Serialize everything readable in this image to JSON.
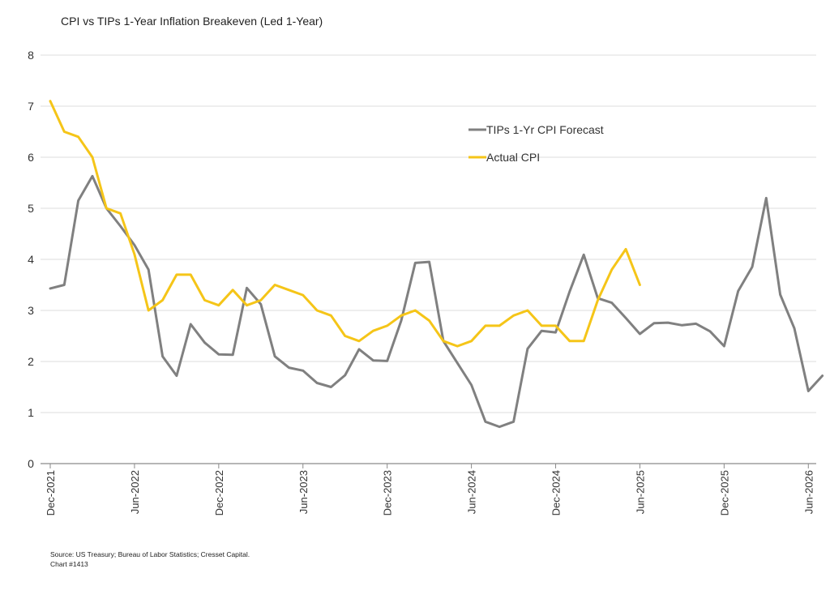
{
  "chart_data": {
    "type": "line",
    "title": "CPI vs TIPs 1-Year Inflation Breakeven (Led 1-Year)",
    "xlabel": "",
    "ylabel": "",
    "ylim": [
      0,
      8
    ],
    "yticks": [
      "0",
      "1",
      "2",
      "3",
      "4",
      "5",
      "6",
      "7",
      "8"
    ],
    "xticks": [
      "Dec-2021",
      "Jun-2022",
      "Dec-2022",
      "Jun-2023",
      "Dec-2023",
      "Jun-2024",
      "Dec-2024",
      "Jun-2025",
      "Dec-2025",
      "Jun-2026"
    ],
    "grid": true,
    "legend_position": "top-right",
    "series": [
      {
        "name": "TIPs 1-Yr CPI Forecast",
        "color": "#808080",
        "x": [
          "Dec-2021",
          "Jan-2022",
          "Feb-2022",
          "Mar-2022",
          "Apr-2022",
          "May-2022",
          "Jun-2022",
          "Jul-2022",
          "Aug-2022",
          "Sep-2022",
          "Oct-2022",
          "Nov-2022",
          "Dec-2022",
          "Jan-2023",
          "Feb-2023",
          "Mar-2023",
          "Apr-2023",
          "May-2023",
          "Jun-2023",
          "Jul-2023",
          "Aug-2023",
          "Sep-2023",
          "Oct-2023",
          "Nov-2023",
          "Dec-2023",
          "Jan-2024",
          "Feb-2024",
          "Mar-2024",
          "Apr-2024",
          "May-2024",
          "Jun-2024",
          "Jul-2024",
          "Aug-2024",
          "Sep-2024",
          "Oct-2024",
          "Nov-2024",
          "Dec-2024",
          "Jan-2025",
          "Feb-2025",
          "Mar-2025",
          "Apr-2025",
          "May-2025",
          "Jun-2025",
          "Jul-2025",
          "Aug-2025",
          "Sep-2025",
          "Oct-2025",
          "Nov-2025",
          "Dec-2025",
          "Jan-2026",
          "Feb-2026",
          "Mar-2026",
          "Apr-2026",
          "May-2026",
          "Jun-2026",
          "Jul-2026"
        ],
        "values": [
          3.43,
          3.5,
          5.15,
          5.63,
          5.0,
          4.65,
          4.28,
          3.8,
          2.1,
          1.72,
          2.73,
          2.37,
          2.14,
          2.13,
          3.44,
          3.12,
          2.1,
          1.88,
          1.82,
          1.58,
          1.5,
          1.73,
          2.24,
          2.02,
          2.01,
          2.8,
          3.93,
          3.95,
          2.4,
          1.97,
          1.54,
          0.82,
          0.72,
          0.82,
          2.25,
          2.6,
          2.57,
          3.37,
          4.09,
          3.24,
          3.15,
          2.85,
          2.54,
          2.75,
          2.76,
          2.71,
          2.74,
          2.59,
          2.3,
          3.38,
          3.85,
          5.2,
          3.31,
          2.65,
          1.42,
          1.72
        ]
      },
      {
        "name": "Actual CPI",
        "color": "#F5C518",
        "x": [
          "Dec-2021",
          "Jan-2022",
          "Feb-2022",
          "Mar-2022",
          "Apr-2022",
          "May-2022",
          "Jun-2022",
          "Jul-2022",
          "Aug-2022",
          "Sep-2022",
          "Oct-2022",
          "Nov-2022",
          "Dec-2022",
          "Jan-2023",
          "Feb-2023",
          "Mar-2023",
          "Apr-2023",
          "May-2023",
          "Jun-2023",
          "Jul-2023",
          "Aug-2023",
          "Sep-2023",
          "Oct-2023",
          "Nov-2023",
          "Dec-2023",
          "Jan-2024",
          "Feb-2024",
          "Mar-2024",
          "Apr-2024",
          "May-2024",
          "Jun-2024",
          "Jul-2024",
          "Aug-2024",
          "Sep-2024",
          "Oct-2024",
          "Nov-2024",
          "Dec-2024",
          "Jan-2025",
          "Feb-2025",
          "Mar-2025",
          "Apr-2025",
          "May-2025",
          "Jun-2025"
        ],
        "values": [
          7.1,
          6.5,
          6.4,
          6.0,
          5.0,
          4.9,
          4.1,
          3.0,
          3.2,
          3.7,
          3.7,
          3.2,
          3.1,
          3.4,
          3.1,
          3.2,
          3.5,
          3.4,
          3.3,
          3.0,
          2.9,
          2.5,
          2.4,
          2.6,
          2.7,
          2.9,
          3.0,
          2.8,
          2.4,
          2.3,
          2.4,
          2.7,
          2.7,
          2.9,
          3.0,
          2.7,
          2.7,
          2.4,
          2.4,
          3.2,
          3.8,
          4.2,
          3.5
        ]
      }
    ],
    "source_lines": [
      "Source: US Treasury; Bureau of Labor Statistics; Cresset Capital.",
      "Chart #1413"
    ]
  }
}
